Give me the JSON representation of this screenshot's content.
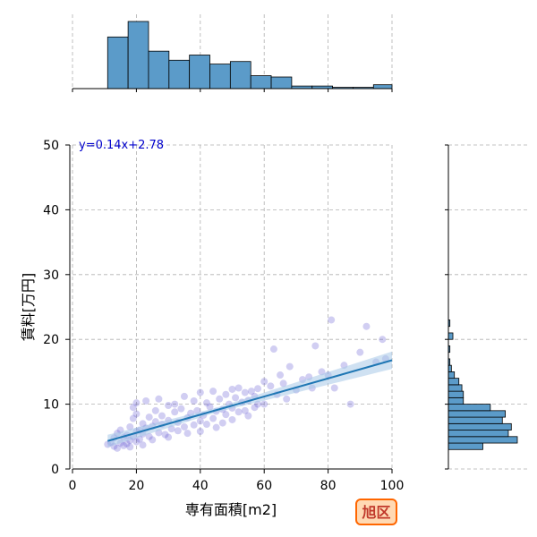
{
  "chart_data": {
    "type": "scatter",
    "subtype": "jointplot",
    "xlabel": "専有面積[m2]",
    "ylabel": "賃料[万円]",
    "xlim": [
      0,
      100
    ],
    "ylim": [
      0,
      50
    ],
    "x_ticks": [
      0,
      20,
      40,
      60,
      80,
      100
    ],
    "y_ticks": [
      0,
      10,
      20,
      30,
      40,
      50
    ],
    "grid": true,
    "equation_label": "y=0.14x+2.78",
    "regression": {
      "slope": 0.14,
      "intercept": 2.78,
      "x_range": [
        11,
        100
      ]
    },
    "colors": {
      "points": "#5a4fcf",
      "regression_line": "#1f77b4",
      "ci_band": "#a8c8e8",
      "histogram": "#5b9bc9",
      "equation": "#0000cc",
      "badge_border": "#ff6600",
      "badge_fill": "#ffd9b3",
      "badge_text": "#c0392b"
    },
    "points": [
      [
        11,
        3.8
      ],
      [
        12,
        4.1
      ],
      [
        13,
        3.5
      ],
      [
        13,
        4.8
      ],
      [
        14,
        3.2
      ],
      [
        14,
        5.5
      ],
      [
        15,
        4.0
      ],
      [
        15,
        6.0
      ],
      [
        16,
        3.6
      ],
      [
        16,
        4.9
      ],
      [
        17,
        5.2
      ],
      [
        17,
        3.9
      ],
      [
        18,
        4.4
      ],
      [
        18,
        6.5
      ],
      [
        18,
        3.4
      ],
      [
        19,
        5.0
      ],
      [
        19,
        7.8
      ],
      [
        19,
        9.5
      ],
      [
        20,
        4.2
      ],
      [
        20,
        5.8
      ],
      [
        20,
        8.5
      ],
      [
        20,
        10.2
      ],
      [
        21,
        6.0
      ],
      [
        21,
        4.6
      ],
      [
        22,
        5.4
      ],
      [
        22,
        7.0
      ],
      [
        22,
        3.7
      ],
      [
        23,
        6.3
      ],
      [
        23,
        10.5
      ],
      [
        24,
        5.0
      ],
      [
        24,
        8.0
      ],
      [
        25,
        6.6
      ],
      [
        25,
        4.5
      ],
      [
        26,
        7.3
      ],
      [
        26,
        9.0
      ],
      [
        27,
        5.6
      ],
      [
        27,
        10.8
      ],
      [
        28,
        6.9
      ],
      [
        28,
        8.2
      ],
      [
        29,
        5.3
      ],
      [
        30,
        7.5
      ],
      [
        30,
        9.8
      ],
      [
        30,
        4.9
      ],
      [
        31,
        6.2
      ],
      [
        32,
        8.8
      ],
      [
        32,
        10.0
      ],
      [
        33,
        5.9
      ],
      [
        33,
        7.2
      ],
      [
        34,
        9.3
      ],
      [
        35,
        6.5
      ],
      [
        35,
        11.2
      ],
      [
        36,
        7.9
      ],
      [
        36,
        5.5
      ],
      [
        37,
        8.6
      ],
      [
        38,
        10.5
      ],
      [
        38,
        6.8
      ],
      [
        39,
        9.0
      ],
      [
        40,
        7.4
      ],
      [
        40,
        11.8
      ],
      [
        40,
        5.8
      ],
      [
        41,
        8.3
      ],
      [
        42,
        10.2
      ],
      [
        42,
        6.9
      ],
      [
        43,
        9.6
      ],
      [
        44,
        7.8
      ],
      [
        44,
        12.0
      ],
      [
        45,
        8.9
      ],
      [
        45,
        6.4
      ],
      [
        46,
        10.8
      ],
      [
        47,
        9.2
      ],
      [
        47,
        7.1
      ],
      [
        48,
        11.5
      ],
      [
        48,
        8.4
      ],
      [
        49,
        10.0
      ],
      [
        50,
        9.4
      ],
      [
        50,
        12.3
      ],
      [
        50,
        7.6
      ],
      [
        51,
        11.0
      ],
      [
        52,
        8.8
      ],
      [
        52,
        12.5
      ],
      [
        53,
        10.3
      ],
      [
        54,
        9.0
      ],
      [
        54,
        11.8
      ],
      [
        55,
        8.2
      ],
      [
        55,
        10.6
      ],
      [
        56,
        12.0
      ],
      [
        57,
        9.5
      ],
      [
        57,
        11.2
      ],
      [
        58,
        10.0
      ],
      [
        58,
        12.4
      ],
      [
        60,
        13.5
      ],
      [
        60,
        10.0
      ],
      [
        62,
        12.8
      ],
      [
        63,
        18.5
      ],
      [
        64,
        11.5
      ],
      [
        65,
        14.5
      ],
      [
        66,
        13.2
      ],
      [
        67,
        10.8
      ],
      [
        68,
        15.8
      ],
      [
        70,
        12.2
      ],
      [
        72,
        13.8
      ],
      [
        74,
        14.2
      ],
      [
        75,
        12.5
      ],
      [
        76,
        19.0
      ],
      [
        78,
        15.0
      ],
      [
        80,
        14.5
      ],
      [
        81,
        23.0
      ],
      [
        82,
        12.5
      ],
      [
        85,
        16.0
      ],
      [
        87,
        10.0
      ],
      [
        90,
        18.0
      ],
      [
        92,
        22.0
      ],
      [
        95,
        16.5
      ],
      [
        97,
        20.0
      ],
      [
        98,
        17.0
      ]
    ],
    "x_histogram": {
      "bin_edges": [
        11.0,
        17.4,
        23.8,
        30.2,
        36.6,
        43.0,
        49.4,
        55.8,
        62.2,
        68.6,
        75.0,
        81.4,
        87.8,
        94.2,
        100.0
      ],
      "counts": [
        40,
        52,
        29,
        22,
        26,
        19,
        21,
        10,
        9,
        2,
        2,
        1,
        1,
        3
      ]
    },
    "y_histogram": {
      "bin_edges": [
        3,
        4,
        5,
        6,
        7,
        8,
        9,
        10,
        11,
        12,
        13,
        14,
        15,
        16,
        17,
        18,
        19,
        20,
        21,
        22,
        23
      ],
      "counts": [
        23,
        46,
        40,
        42,
        36,
        38,
        28,
        10,
        10,
        9,
        7,
        4,
        2,
        1,
        0,
        1,
        0,
        3,
        0,
        1
      ]
    }
  },
  "badge": {
    "label": "旭区"
  }
}
